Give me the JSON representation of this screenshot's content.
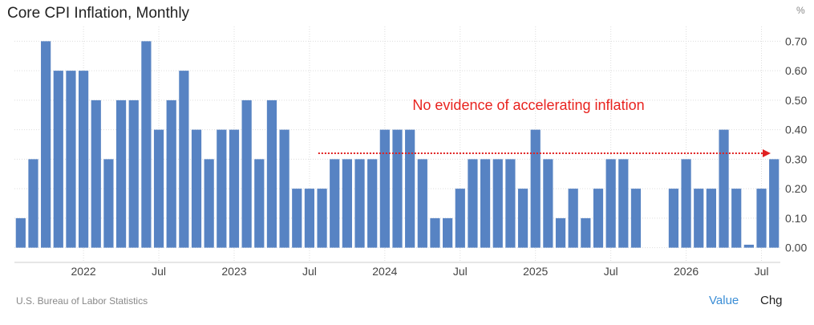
{
  "header": {
    "title": "Core CPI Inflation, Monthly",
    "unit": "%"
  },
  "footer": {
    "source": "U.S. Bureau of Labor Statistics",
    "value_label": "Value",
    "chg_label": "Chg"
  },
  "colors": {
    "bar": "#5783c3",
    "annotation": "#e8231f",
    "grid": "#dddddd",
    "arrow": "#e02020"
  },
  "chart_data": {
    "type": "bar",
    "ylim": [
      -0.05,
      0.75
    ],
    "yticks": [
      0.0,
      0.1,
      0.2,
      0.3,
      0.4,
      0.5,
      0.6,
      0.7
    ],
    "ytick_labels": [
      "0.00",
      "0.10",
      "0.20",
      "0.30",
      "0.40",
      "0.50",
      "0.60",
      "0.70"
    ],
    "grid": true,
    "values": [
      0.1,
      0.3,
      0.7,
      0.6,
      0.6,
      0.6,
      0.5,
      0.3,
      0.5,
      0.5,
      0.7,
      0.4,
      0.5,
      0.6,
      0.4,
      0.3,
      0.4,
      0.4,
      0.5,
      0.3,
      0.5,
      0.4,
      0.2,
      0.2,
      0.2,
      0.3,
      0.3,
      0.3,
      0.3,
      0.4,
      0.4,
      0.4,
      0.3,
      0.1,
      0.1,
      0.2,
      0.3,
      0.3,
      0.3,
      0.3,
      0.2,
      0.4,
      0.3,
      0.1,
      0.2,
      0.1,
      0.2,
      0.3,
      0.3,
      0.2,
      0.0,
      0.0,
      0.2,
      0.3,
      0.2,
      0.2,
      0.4,
      0.2,
      0.01,
      0.2,
      0.3
    ],
    "xticks": [
      {
        "label": "2022",
        "index": 5
      },
      {
        "label": "Jul",
        "index": 11
      },
      {
        "label": "2023",
        "index": 17
      },
      {
        "label": "Jul",
        "index": 23
      },
      {
        "label": "2024",
        "index": 29
      },
      {
        "label": "Jul",
        "index": 35
      },
      {
        "label": "2025",
        "index": 41
      },
      {
        "label": "Jul",
        "index": 47
      },
      {
        "label": "2026",
        "index": 53
      },
      {
        "label": "Jul",
        "index": 59
      }
    ],
    "annotation": {
      "text": "No evidence of accelerating inflation",
      "arrow_from_index": 24,
      "arrow_level": 0.32
    }
  }
}
